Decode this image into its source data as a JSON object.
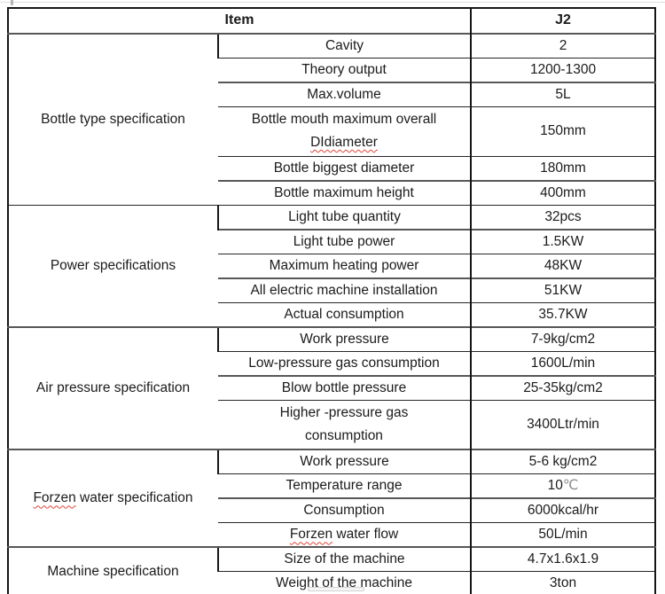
{
  "colors": {
    "spellcheck_red": "#e0443a",
    "degree_symbol_gray": "#8a8a8a",
    "grid_black": "#161616",
    "grid_thick_gray": "#575757"
  },
  "table": {
    "header": {
      "item_label": "Item",
      "model_label": "J2"
    },
    "sections": [
      {
        "group": "Bottle type specification",
        "rows": [
          {
            "item": "Cavity",
            "value": "2"
          },
          {
            "item": "Theory output",
            "value": "1200-1300"
          },
          {
            "item": "Max.volume",
            "value": "5L"
          },
          {
            "item_line1": "Bottle mouth maximum overall",
            "item_line2": "DIdiameter",
            "value": "150mm"
          },
          {
            "item": "Bottle biggest diameter",
            "value": "180mm"
          },
          {
            "item": "Bottle maximum height",
            "value": "400mm"
          }
        ]
      },
      {
        "group": "Power specifications",
        "rows": [
          {
            "item": "Light tube quantity",
            "value": "32pcs"
          },
          {
            "item": "Light tube power",
            "value": "1.5KW"
          },
          {
            "item": "Maximum heating power",
            "value": "48KW"
          },
          {
            "item": "All electric machine installation",
            "value": "51KW"
          },
          {
            "item": "Actual consumption",
            "value": "35.7KW"
          }
        ]
      },
      {
        "group": "Air pressure specification",
        "rows": [
          {
            "item": "Work pressure",
            "value": "7-9kg/cm2"
          },
          {
            "item": "Low-pressure gas consumption",
            "value": "1600L/min"
          },
          {
            "item": "Blow bottle pressure",
            "value": "25-35kg/cm2"
          },
          {
            "item_line1": "Higher -pressure gas",
            "item_line2": "consumption",
            "value": "3400Ltr/min"
          }
        ]
      },
      {
        "group_word": "Forzen",
        "group_rest": " water specification",
        "rows": [
          {
            "item": "Work pressure",
            "value": "5-6 kg/cm2"
          },
          {
            "item": "Temperature range",
            "value_number": "10",
            "value_unit": "℃"
          },
          {
            "item": "Consumption",
            "value": "6000kcal/hr"
          },
          {
            "item_word": "Forzen",
            "item_rest": " water flow",
            "value": "50L/min"
          }
        ]
      },
      {
        "group": "Machine specification",
        "rows": [
          {
            "item": "Size of the machine",
            "value": "4.7x1.6x1.9"
          },
          {
            "item": "Weight of the machine",
            "value": "3ton"
          }
        ]
      }
    ]
  }
}
